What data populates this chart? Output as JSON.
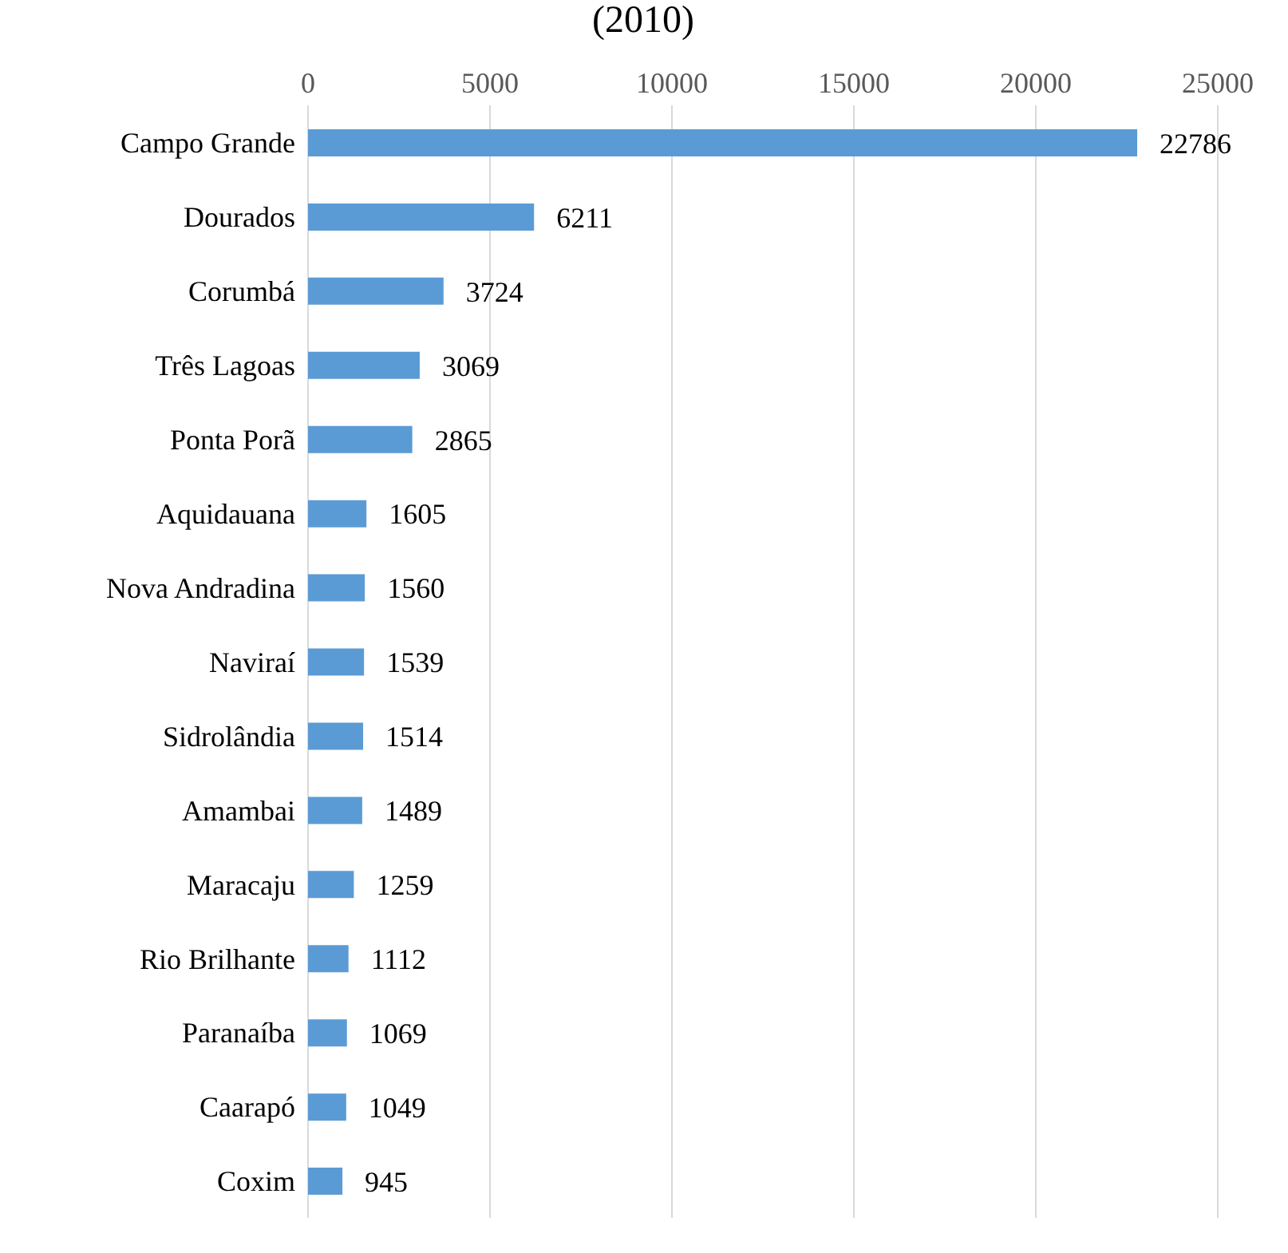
{
  "chart_data": {
    "type": "bar",
    "orientation": "horizontal",
    "title": "(2010)",
    "categories": [
      "Campo Grande",
      "Dourados",
      "Corumbá",
      "Três Lagoas",
      "Ponta Porã",
      "Aquidauana",
      "Nova Andradina",
      "Naviraí",
      "Sidrolândia",
      "Amambai",
      "Maracaju",
      "Rio Brilhante",
      "Paranaíba",
      "Caarapó",
      "Coxim"
    ],
    "values": [
      22786,
      6211,
      3724,
      3069,
      2865,
      1605,
      1560,
      1539,
      1514,
      1489,
      1259,
      1112,
      1069,
      1049,
      945
    ],
    "color": "#5b9bd5",
    "xlim": [
      0,
      25000
    ],
    "xticks": [
      0,
      5000,
      10000,
      15000,
      20000,
      25000
    ],
    "grid": "x",
    "data_labels": true
  }
}
